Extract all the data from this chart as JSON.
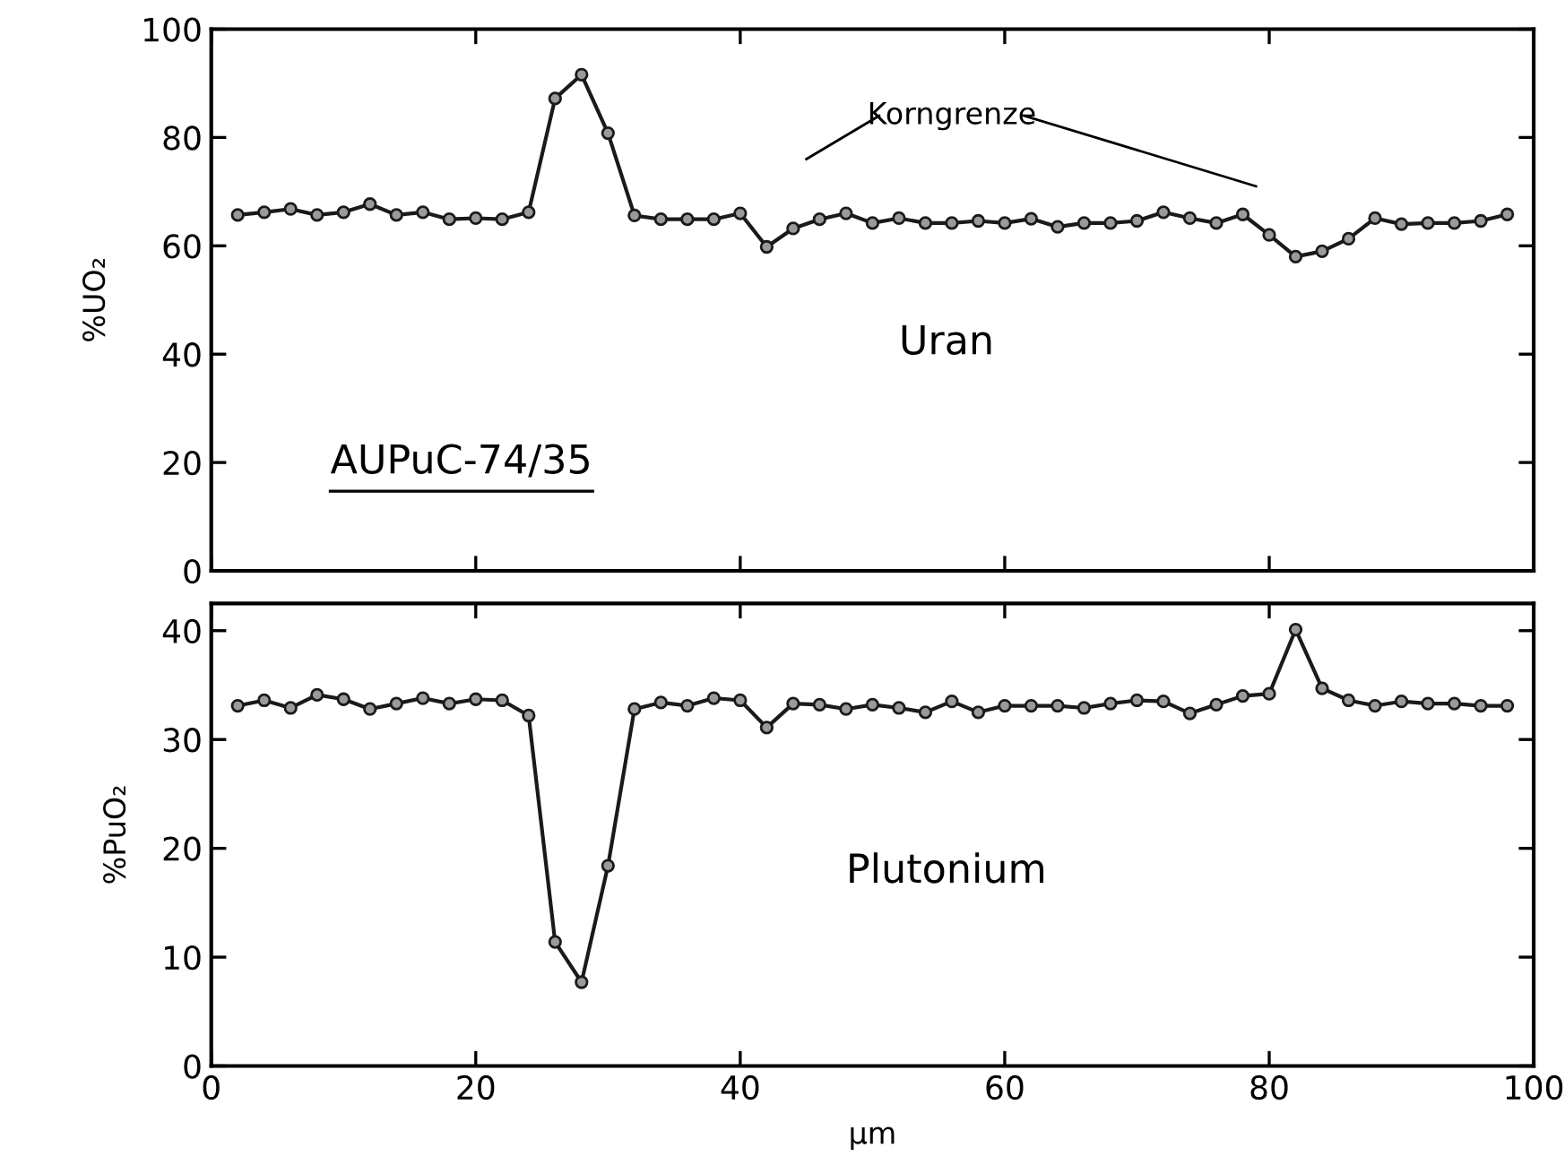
{
  "chart_data": [
    {
      "type": "line",
      "ylabel": "%UO₂",
      "xlim": [
        0,
        100
      ],
      "xticks": [
        0,
        20,
        40,
        60,
        80,
        100
      ],
      "ylim": [
        0,
        100
      ],
      "yticks": [
        0,
        20,
        40,
        60,
        80,
        100
      ],
      "tick_labels": "y",
      "marker": "circle",
      "line_style": "solid",
      "grid": false,
      "legend": false,
      "x": [
        2,
        4,
        6,
        8,
        10,
        12,
        14,
        16,
        18,
        20,
        22,
        24,
        26,
        28,
        30,
        32,
        34,
        36,
        38,
        40,
        42,
        44,
        46,
        48,
        50,
        52,
        54,
        56,
        58,
        60,
        62,
        64,
        66,
        68,
        70,
        72,
        74,
        76,
        78,
        80,
        82,
        84,
        86,
        88,
        90,
        92,
        94,
        96,
        98
      ],
      "series": [
        {
          "color": "#1a1a1a",
          "values": [
            65.7,
            66.2,
            66.8,
            65.7,
            66.2,
            67.7,
            65.7,
            66.2,
            64.9,
            65.1,
            64.9,
            66.2,
            87.2,
            91.6,
            80.8,
            65.6,
            64.9,
            64.9,
            64.9,
            66,
            59.8,
            63.2,
            64.9,
            66,
            64.2,
            65.1,
            64.2,
            64.2,
            64.6,
            64.2,
            65,
            63.5,
            64.2,
            64.2,
            64.6,
            66.2,
            65.1,
            64.2,
            65.8,
            62,
            58,
            59,
            61.3,
            65.1,
            64,
            64.2,
            64.2,
            64.6,
            65.8
          ]
        }
      ],
      "annotations": [
        "Korngrenze",
        "Uran",
        "AUPuC-74/35"
      ]
    },
    {
      "type": "line",
      "ylabel": "%PuO₂",
      "xlabel": "µm",
      "xlim": [
        0,
        100
      ],
      "xticks": [
        0,
        20,
        40,
        60,
        80,
        100
      ],
      "ylim": [
        0,
        42.5
      ],
      "yticks": [
        0,
        10,
        20,
        30,
        40
      ],
      "marker": "circle",
      "line_style": "solid",
      "grid": false,
      "legend": false,
      "x": [
        2,
        4,
        6,
        8,
        10,
        12,
        14,
        16,
        18,
        20,
        22,
        24,
        26,
        28,
        30,
        32,
        34,
        36,
        38,
        40,
        42,
        44,
        46,
        48,
        50,
        52,
        54,
        56,
        58,
        60,
        62,
        64,
        66,
        68,
        70,
        72,
        74,
        76,
        78,
        80,
        82,
        84,
        86,
        88,
        90,
        92,
        94,
        96,
        98
      ],
      "series": [
        {
          "color": "#1a1a1a",
          "values": [
            33.1,
            33.6,
            32.9,
            34.1,
            33.7,
            32.8,
            33.3,
            33.8,
            33.3,
            33.7,
            33.6,
            32.2,
            11.4,
            7.7,
            18.4,
            32.8,
            33.4,
            33.1,
            33.8,
            33.6,
            31.1,
            33.3,
            33.2,
            32.8,
            33.2,
            32.9,
            32.5,
            33.5,
            32.5,
            33.1,
            33.1,
            33.1,
            32.9,
            33.3,
            33.6,
            33.5,
            32.4,
            33.2,
            34.0,
            34.2,
            40.1,
            34.7,
            33.6,
            33.1,
            33.5,
            33.3,
            33.3,
            33.1,
            33.1
          ]
        }
      ],
      "annotations": [
        "Plutonium"
      ]
    }
  ]
}
